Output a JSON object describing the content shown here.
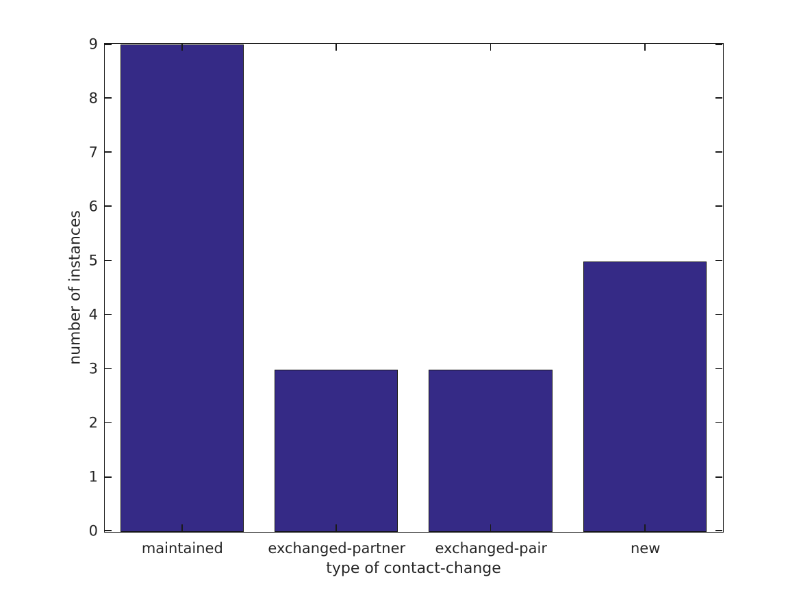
{
  "figure": {
    "background": "#ffffff",
    "bar_color": "#352A86",
    "bar_edge_color": "#141414",
    "axis_color": "#1a1a1a",
    "text_color": "#262626"
  },
  "chart_data": {
    "type": "bar",
    "categories": [
      "maintained",
      "exchanged-partner",
      "exchanged-pair",
      "new"
    ],
    "values": [
      9,
      3,
      3,
      5
    ],
    "title": "",
    "xlabel": "type of contact-change",
    "ylabel": "number of instances",
    "ylim": [
      0,
      9
    ],
    "yticks": [
      0,
      1,
      2,
      3,
      4,
      5,
      6,
      7,
      8,
      9
    ],
    "grid": false,
    "legend": null,
    "bar_relative_width": 0.8,
    "tick_direction": "in",
    "box": true
  }
}
